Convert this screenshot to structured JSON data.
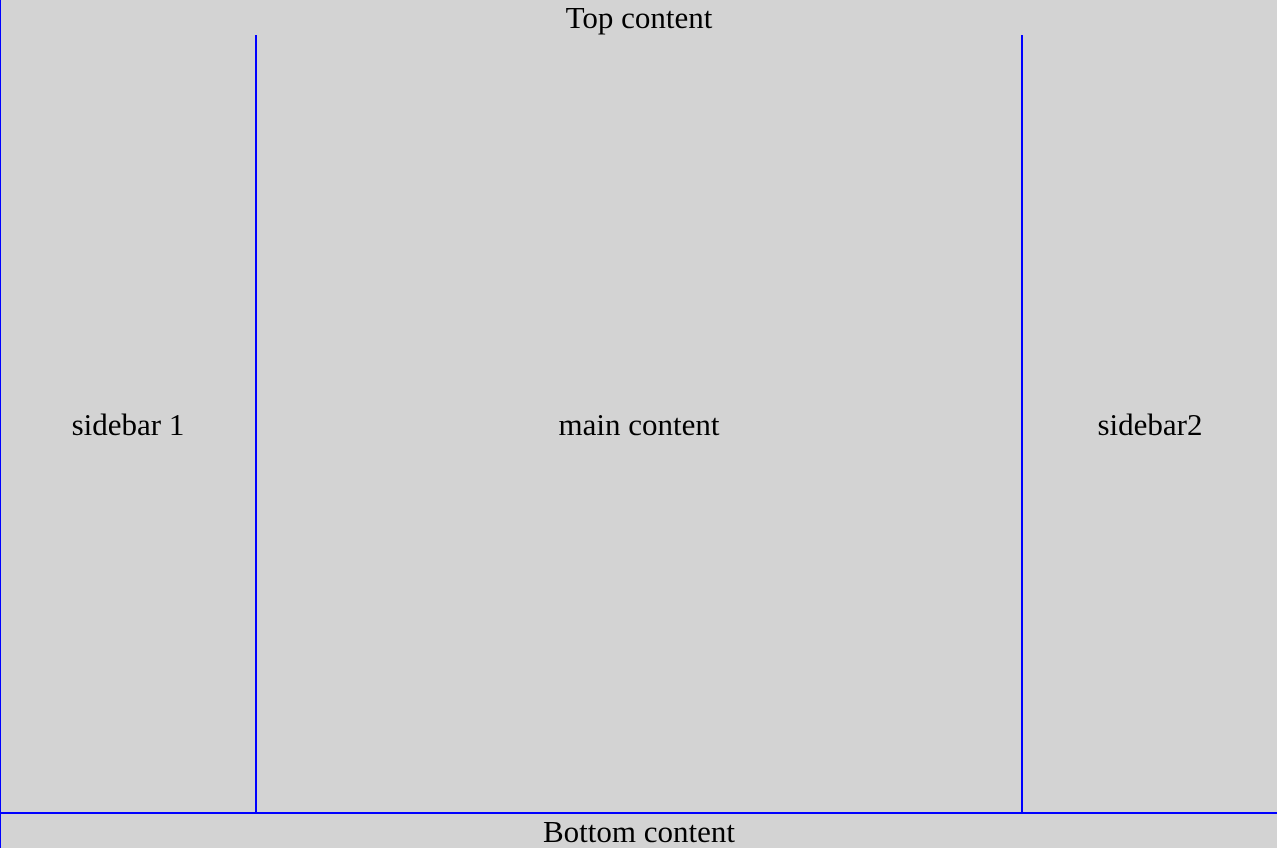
{
  "layout": {
    "top": {
      "label": "Top content"
    },
    "left_sidebar": {
      "label": "sidebar 1"
    },
    "main": {
      "label": "main content"
    },
    "right_sidebar": {
      "label": "sidebar2"
    },
    "bottom": {
      "label": "Bottom content"
    }
  },
  "colors": {
    "background": "#d3d3d3",
    "border": "#0000ff",
    "text": "#000000"
  }
}
